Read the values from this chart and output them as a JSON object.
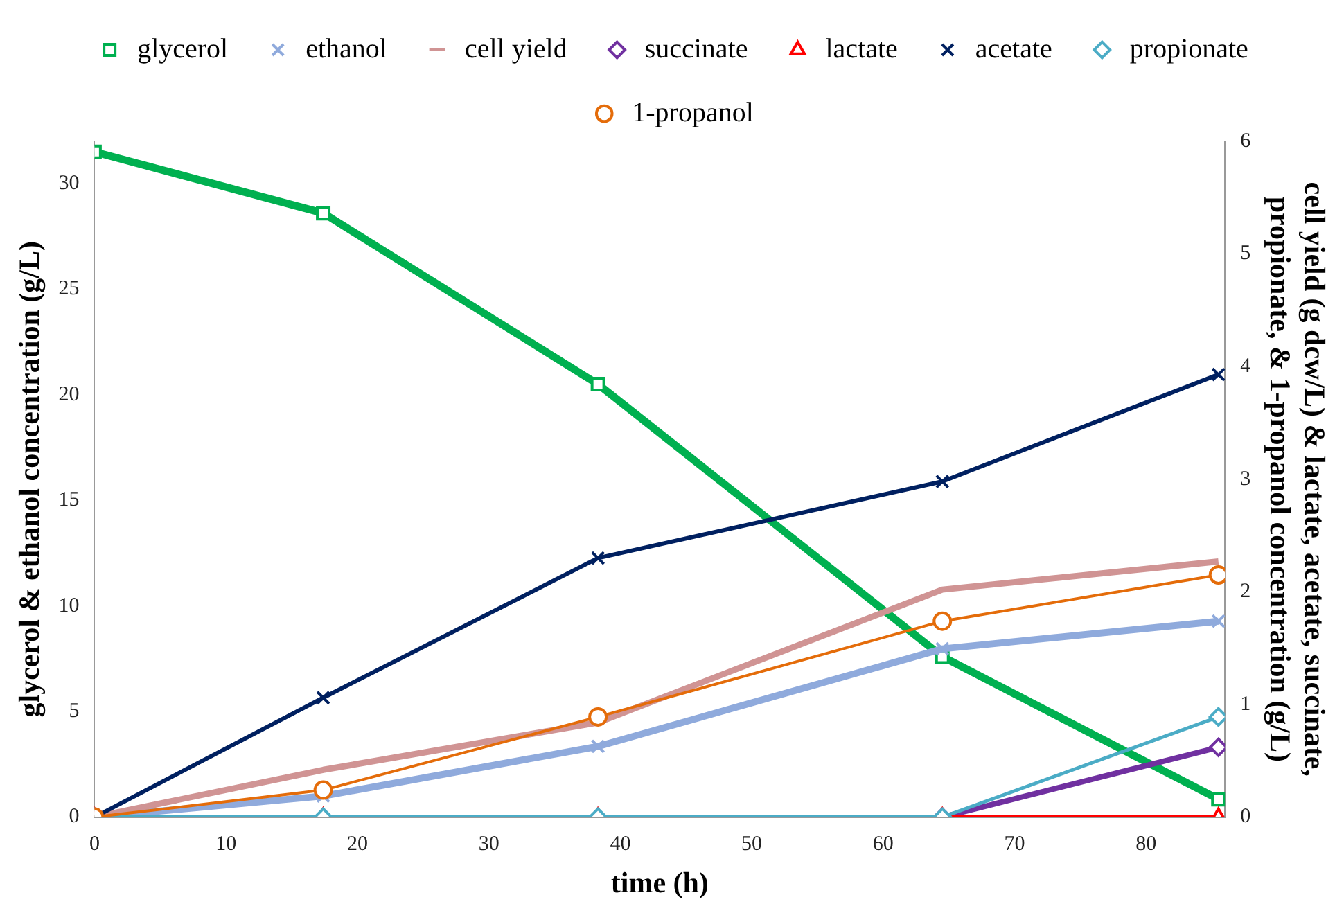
{
  "chart_data": {
    "type": "line",
    "xlabel": "time (h)",
    "ylabel": "glycerol & ethanol concentration (g/L)",
    "y2label": "cell yield (g dcw/L) & lactate, acetate, succinate, propionate, & 1-propanol concentration (g/L)",
    "x": [
      0,
      17.4,
      38.3,
      64.5,
      85.5
    ],
    "xlim": [
      0,
      86
    ],
    "xticks": [
      0,
      10,
      20,
      30,
      40,
      50,
      60,
      70,
      80
    ],
    "ylim": [
      0,
      32
    ],
    "yticks": [
      0,
      5,
      10,
      15,
      20,
      25,
      30
    ],
    "y2lim": [
      0,
      6
    ],
    "y2ticks": [
      0,
      1,
      2,
      3,
      4,
      5,
      6
    ],
    "grid": false,
    "legend": "top",
    "series": [
      {
        "name": "glycerol",
        "color": "#00b050",
        "marker": "square",
        "values": [
          31.5,
          28.6,
          20.5,
          7.6,
          0.85
        ]
      },
      {
        "name": "ethanol",
        "color": "#8faadc",
        "marker": "cross",
        "values": [
          0,
          1.0,
          3.35,
          7.97,
          9.28
        ]
      },
      {
        "name": "cell yield",
        "color": "#d09494",
        "marker": "none",
        "axis": "y2",
        "values": [
          0,
          0.42,
          0.84,
          2.02,
          2.27
        ]
      },
      {
        "name": "succinate",
        "color": "#7030a0",
        "marker": "diamond",
        "axis": "y2",
        "values": [
          null,
          null,
          null,
          0,
          0.62
        ]
      },
      {
        "name": "lactate",
        "color": "#ff0000",
        "marker": "triangle",
        "axis": "y2",
        "values": [
          0,
          0,
          0,
          0,
          0
        ]
      },
      {
        "name": "acetate",
        "color": "#002060",
        "marker": "cross",
        "axis": "y2",
        "values": [
          0,
          1.06,
          2.3,
          2.98,
          3.93
        ]
      },
      {
        "name": "propionate",
        "color": "#4bacc6",
        "marker": "diamond",
        "axis": "y2",
        "values": [
          0,
          0,
          0,
          0,
          0.89
        ]
      },
      {
        "name": "1-propanol",
        "color": "#e46c0a",
        "marker": "circle",
        "axis": "y2",
        "values": [
          0,
          0.24,
          0.89,
          1.74,
          2.15
        ]
      }
    ]
  }
}
